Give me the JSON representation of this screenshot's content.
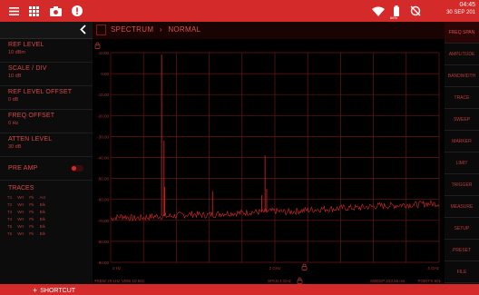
{
  "statusbar": {
    "time": "04:45",
    "date": "30 SEP 201",
    "battery_pct": "66%",
    "accent": "#d52a2a"
  },
  "breadcrumb": {
    "mode": "SPECTRUM",
    "separator": "›",
    "view": "NORMAL"
  },
  "left_panel": {
    "params": [
      {
        "label": "REF LEVEL",
        "value": "10 dBm"
      },
      {
        "label": "SCALE / DIV",
        "value": "10 dB"
      },
      {
        "label": "REF LEVEL OFFSET",
        "value": "0 dB"
      },
      {
        "label": "FREQ OFFSET",
        "value": "0 Hz"
      },
      {
        "label": "ATTEN LEVEL",
        "value": "30 dB"
      }
    ],
    "preamp_label": "PRE AMP",
    "preamp_state": "Off",
    "traces_title": "TRACES",
    "traces": [
      [
        "T1",
        "Wrt",
        "Pk",
        "Act"
      ],
      [
        "T2",
        "Wrt",
        "Pk",
        "Blk"
      ],
      [
        "T3",
        "Wrt",
        "Pk",
        "Blk"
      ],
      [
        "T4",
        "Wrt",
        "Pk",
        "Blk"
      ],
      [
        "T5",
        "Wrt",
        "Pk",
        "Blk"
      ],
      [
        "T6",
        "Wrt",
        "Pk",
        "Blk"
      ]
    ]
  },
  "right_menu": [
    "FREQ SPAN",
    "AMPLITUDE",
    "BANDWIDTH",
    "TRACE",
    "SWEEP",
    "MARKER",
    "LIMIT",
    "TRIGGER",
    "MEASURE",
    "SETUP",
    "PRESET",
    "FILE"
  ],
  "bottom": {
    "shortcut_label": "SHORTCUT"
  },
  "chart_data": {
    "type": "line",
    "y_tick_labels": [
      "10.00",
      "0.00",
      "-10.00",
      "-20.00",
      "-30.00",
      "-40.00",
      "-50.00",
      "-60.00",
      "-70.00",
      "-80.00",
      "-90.00"
    ],
    "ylim": [
      -90,
      10
    ],
    "x_tick_labels": [
      "0 Hz",
      "2 GHz",
      "4 GHz"
    ],
    "xlim": [
      0,
      4
    ],
    "x_unit": "GHz",
    "grid": true,
    "noise_floor_dbm": [
      -69,
      -68,
      -69,
      -68.5,
      -68,
      -68,
      -67.5,
      -67,
      -67.5,
      -67,
      -66.5,
      -66.5,
      -66,
      -66,
      -65.5,
      -66,
      -65.5,
      -65,
      -64.5,
      -64.5,
      -64,
      -64,
      -63.5,
      -63,
      -63,
      -62.5,
      -62.5,
      -62,
      -62
    ],
    "peaks": [
      {
        "x": 0.62,
        "y": 9
      },
      {
        "x": 0.65,
        "y": -32
      },
      {
        "x": 0.66,
        "y": -54
      },
      {
        "x": 1.24,
        "y": -56
      },
      {
        "x": 1.84,
        "y": -58
      },
      {
        "x": 1.88,
        "y": -39
      },
      {
        "x": 1.9,
        "y": -55
      },
      {
        "x": 3.7,
        "y": -63
      }
    ],
    "settings": {
      "rbw": "#RBW 20 kHz",
      "vbw": "VBW 10 kHz",
      "span": "SPAN 4 GHz",
      "sweep": "SWEEP 223.56 ms",
      "points": "POINTS 601"
    },
    "trace_color": "#d52a2a",
    "grid_color": "#6b1515"
  }
}
